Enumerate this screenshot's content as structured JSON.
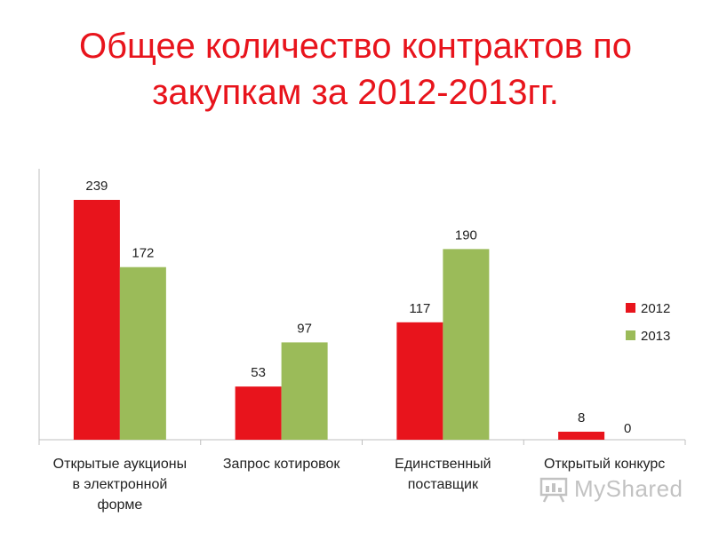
{
  "title_line1": "Общее количество контрактов по",
  "title_line2": "закупкам за 2012-2013гг.",
  "watermark": "MyShared",
  "colors": {
    "title": "#e8141c",
    "series_2012": "#e8141c",
    "series_2013": "#9bbb59",
    "axis": "#bfbfbf",
    "text": "#1f1f1f"
  },
  "chart_data": {
    "type": "bar",
    "title": "Общее количество контрактов по закупкам за 2012-2013гг.",
    "xlabel": "",
    "ylabel": "",
    "ylim": [
      0,
      239
    ],
    "grid": false,
    "legend_position": "right",
    "categories": [
      [
        "Открытые аукционы",
        "в электронной",
        "форме"
      ],
      [
        "Запрос котировок"
      ],
      [
        "Единственный",
        "поставщик"
      ],
      [
        "Открытый конкурс"
      ]
    ],
    "series": [
      {
        "name": "2012",
        "color": "#e8141c",
        "values": [
          239,
          53,
          117,
          8
        ]
      },
      {
        "name": "2013",
        "color": "#9bbb59",
        "values": [
          172,
          97,
          190,
          0
        ]
      }
    ]
  }
}
